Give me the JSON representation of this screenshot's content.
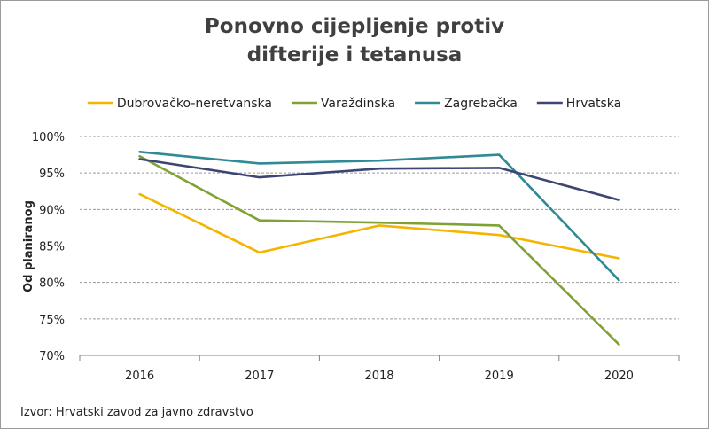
{
  "chart_data": {
    "type": "line",
    "title_lines": [
      "Ponovno cijepljenje protiv",
      "difterije i tetanusa"
    ],
    "ylabel": "Od planiranog",
    "xlabel": "",
    "categories": [
      "2016",
      "2017",
      "2018",
      "2019",
      "2020"
    ],
    "y_ticks": [
      "70%",
      "75%",
      "80%",
      "85%",
      "90%",
      "95%",
      "100%"
    ],
    "ylim": [
      70,
      100
    ],
    "grid": "horizontal dashed",
    "legend_position": "top",
    "series": [
      {
        "name": "Dubrovačko-neretvanska",
        "color": "#f5b400",
        "values": [
          92.1,
          84.1,
          87.8,
          86.5,
          83.3
        ]
      },
      {
        "name": "Varaždinska",
        "color": "#7fa235",
        "values": [
          97.3,
          88.5,
          88.2,
          87.8,
          71.5
        ]
      },
      {
        "name": "Zagrebačka",
        "color": "#2f8a96",
        "values": [
          97.9,
          96.3,
          96.7,
          97.5,
          80.3
        ]
      },
      {
        "name": "Hrvatska",
        "color": "#3d4673",
        "values": [
          96.9,
          94.4,
          95.6,
          95.7,
          91.3
        ]
      }
    ]
  },
  "source": "Izvor: Hrvatski zavod za javno zdravstvo"
}
